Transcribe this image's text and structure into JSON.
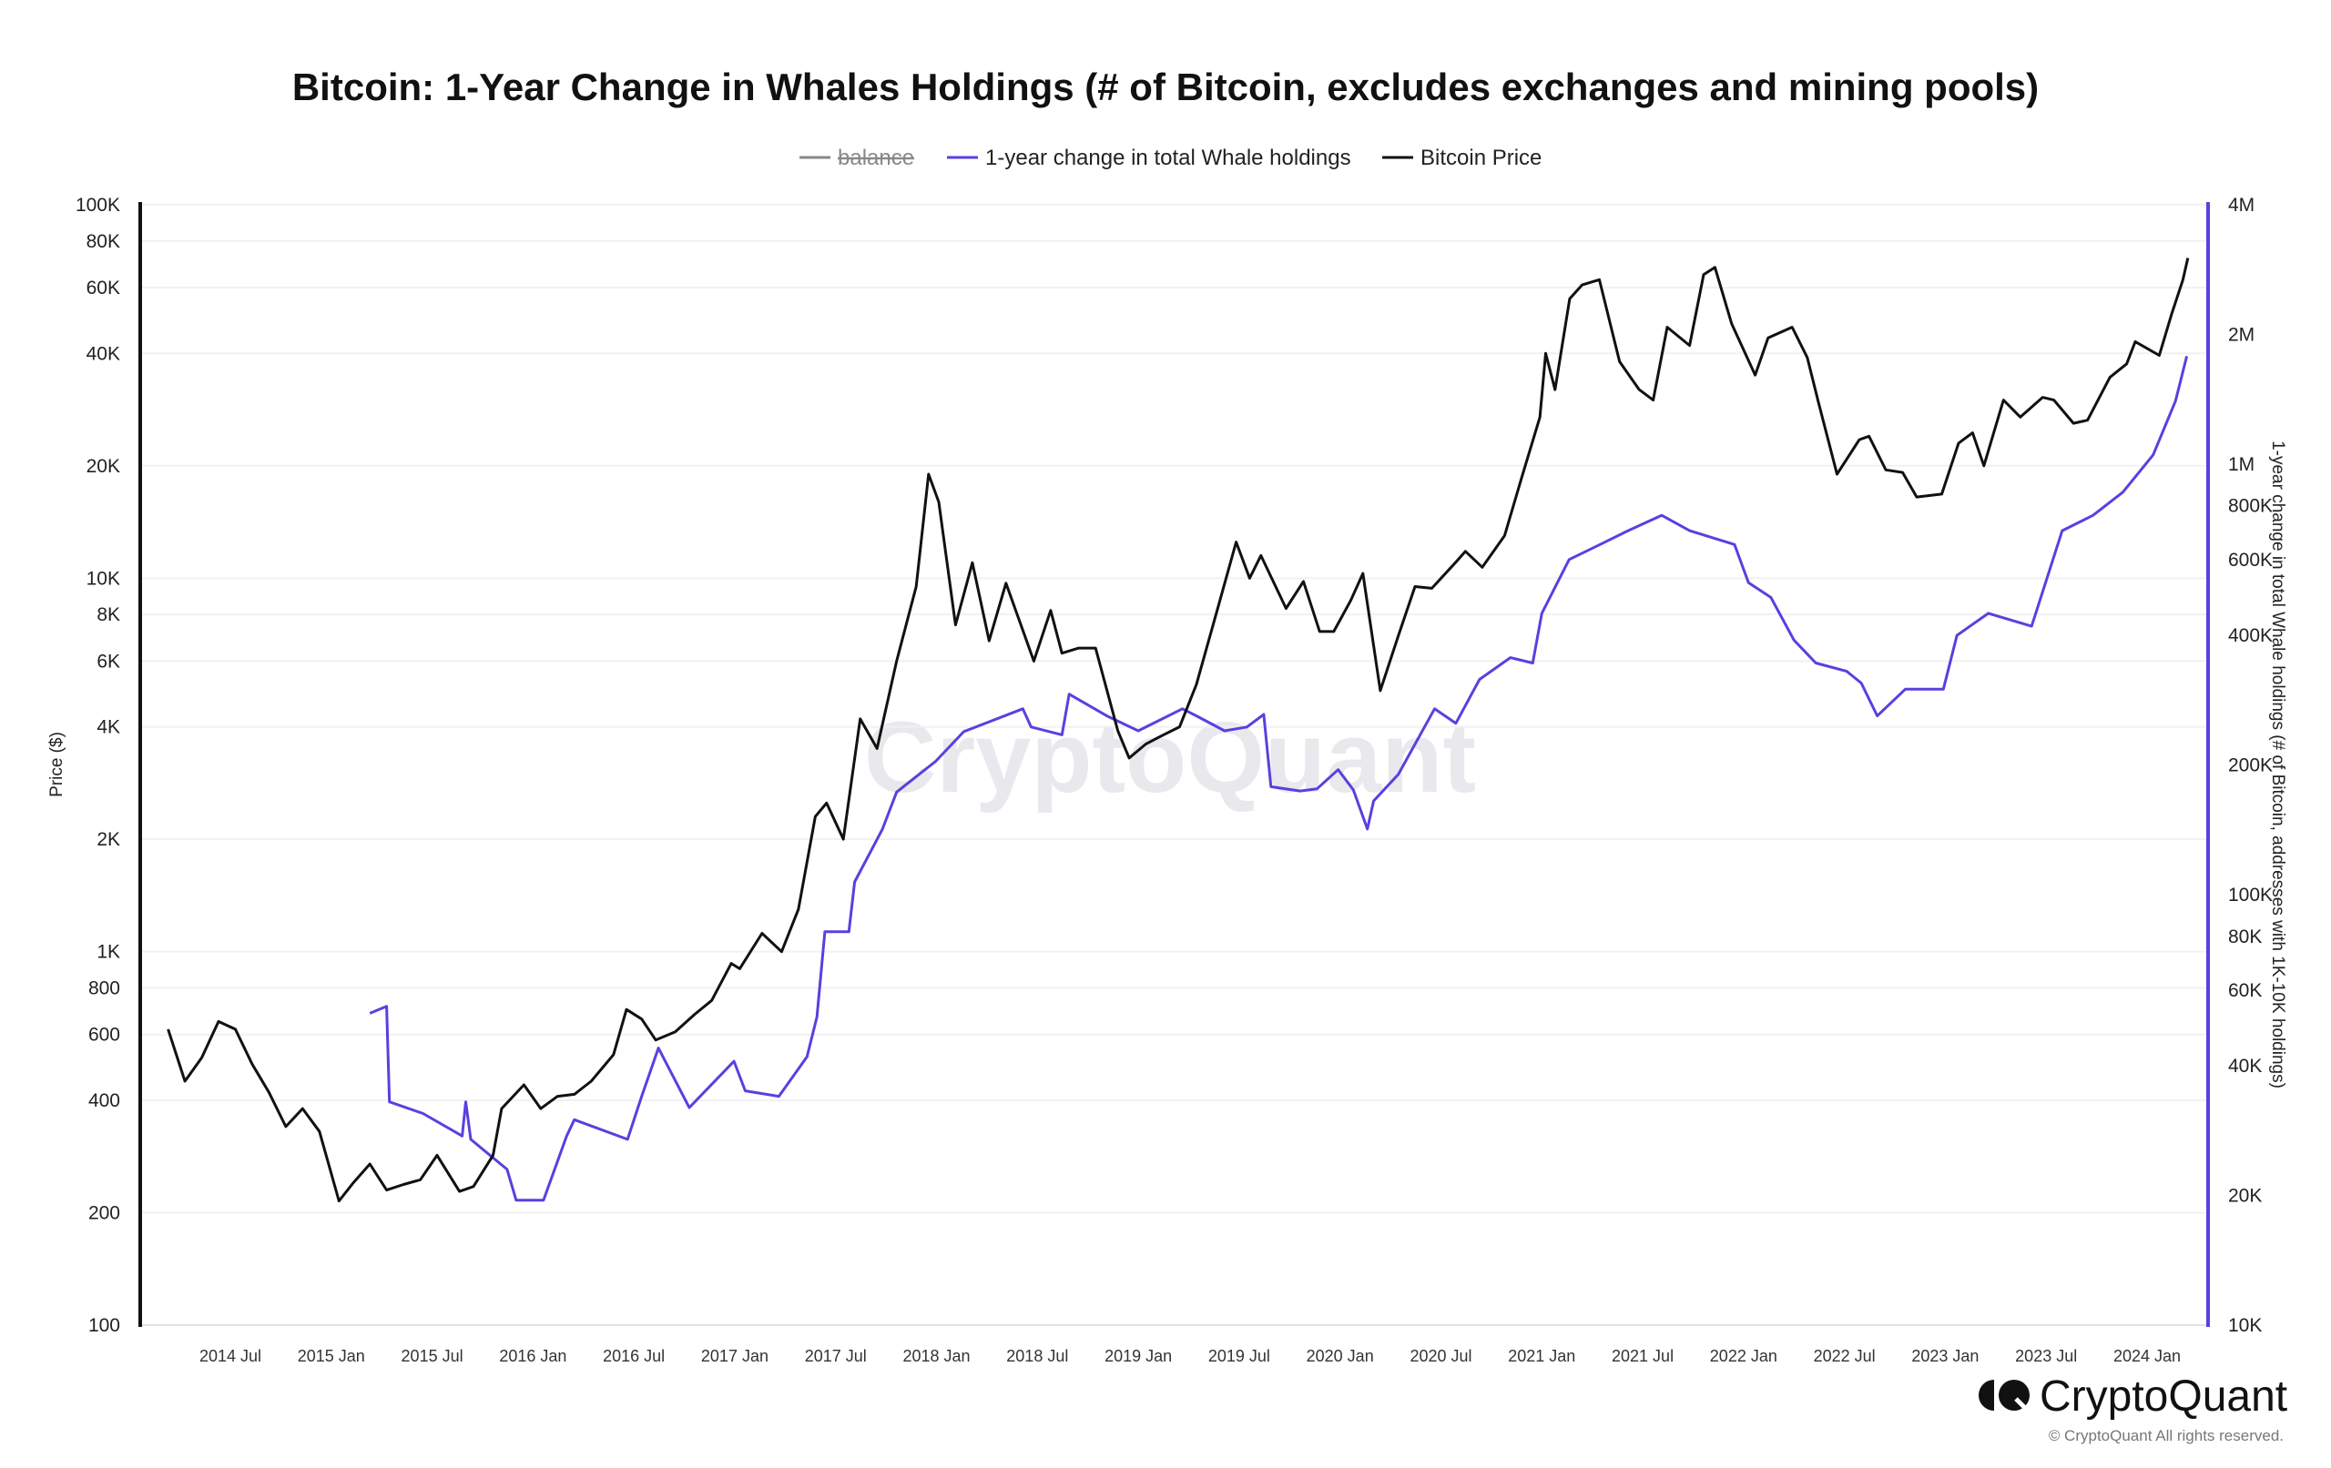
{
  "chart_data": {
    "type": "line",
    "title": "Bitcoin: 1-Year Change in Whales Holdings (# of Bitcoin, excludes exchanges and mining pools)",
    "legend": [
      {
        "name": "balance",
        "color": "#888888",
        "hidden": true
      },
      {
        "name": "1-year change in total Whale holdings",
        "color": "#5b3fe0",
        "hidden": false
      },
      {
        "name": "Bitcoin Price",
        "color": "#111111",
        "hidden": false
      }
    ],
    "legend_position": "top-center",
    "watermark": "CryptoQuant",
    "x_ticks": [
      "2014 Jul",
      "2015 Jan",
      "2015 Jul",
      "2016 Jan",
      "2016 Jul",
      "2017 Jan",
      "2017 Jul",
      "2018 Jan",
      "2018 Jul",
      "2019 Jan",
      "2019 Jul",
      "2020 Jan",
      "2020 Jul",
      "2021 Jan",
      "2021 Jul",
      "2022 Jan",
      "2022 Jul",
      "2023 Jan",
      "2023 Jul",
      "2024 Jan"
    ],
    "xlim": [
      "2014-02",
      "2024-04"
    ],
    "y_left": {
      "label": "Price ($)",
      "scale": "log",
      "range": [
        100,
        100000
      ],
      "ticks": [
        [
          100,
          "100"
        ],
        [
          200,
          "200"
        ],
        [
          400,
          "400"
        ],
        [
          600,
          "600"
        ],
        [
          800,
          "800"
        ],
        [
          1000,
          "1K"
        ],
        [
          2000,
          "2K"
        ],
        [
          4000,
          "4K"
        ],
        [
          6000,
          "6K"
        ],
        [
          8000,
          "8K"
        ],
        [
          10000,
          "10K"
        ],
        [
          20000,
          "20K"
        ],
        [
          40000,
          "40K"
        ],
        [
          60000,
          "60K"
        ],
        [
          80000,
          "80K"
        ],
        [
          100000,
          "100K"
        ]
      ]
    },
    "y_right": {
      "label": "1-year change in total Whale holdings (# of Bitcoin, addresses with 1K-10K holdings)",
      "scale": "log",
      "range": [
        10000,
        4000000
      ],
      "ticks": [
        [
          10000,
          "10K"
        ],
        [
          20000,
          "20K"
        ],
        [
          40000,
          "40K"
        ],
        [
          60000,
          "60K"
        ],
        [
          80000,
          "80K"
        ],
        [
          100000,
          "100K"
        ],
        [
          200000,
          "200K"
        ],
        [
          400000,
          "400K"
        ],
        [
          600000,
          "600K"
        ],
        [
          800000,
          "800K"
        ],
        [
          1000000,
          "1M"
        ],
        [
          2000000,
          "2M"
        ],
        [
          4000000,
          "4M"
        ]
      ]
    },
    "grid": true,
    "series": [
      {
        "name": "Bitcoin Price",
        "axis": "left",
        "color": "#111111",
        "points": [
          [
            "2014-03-10",
            620
          ],
          [
            "2014-04-10",
            450
          ],
          [
            "2014-05-10",
            520
          ],
          [
            "2014-06-10",
            650
          ],
          [
            "2014-07-10",
            620
          ],
          [
            "2014-08-10",
            500
          ],
          [
            "2014-09-10",
            420
          ],
          [
            "2014-10-10",
            340
          ],
          [
            "2014-11-10",
            380
          ],
          [
            "2014-12-10",
            330
          ],
          [
            "2015-01-15",
            215
          ],
          [
            "2015-02-10",
            240
          ],
          [
            "2015-03-10",
            270
          ],
          [
            "2015-04-10",
            230
          ],
          [
            "2015-05-10",
            238
          ],
          [
            "2015-06-10",
            245
          ],
          [
            "2015-07-10",
            285
          ],
          [
            "2015-08-20",
            228
          ],
          [
            "2015-09-15",
            235
          ],
          [
            "2015-10-20",
            285
          ],
          [
            "2015-11-05",
            380
          ],
          [
            "2015-12-15",
            440
          ],
          [
            "2016-01-15",
            380
          ],
          [
            "2016-02-15",
            410
          ],
          [
            "2016-03-15",
            415
          ],
          [
            "2016-04-15",
            450
          ],
          [
            "2016-05-25",
            530
          ],
          [
            "2016-06-18",
            700
          ],
          [
            "2016-07-15",
            660
          ],
          [
            "2016-08-10",
            580
          ],
          [
            "2016-09-15",
            610
          ],
          [
            "2016-10-20",
            680
          ],
          [
            "2016-11-20",
            740
          ],
          [
            "2016-12-25",
            930
          ],
          [
            "2017-01-10",
            900
          ],
          [
            "2017-02-20",
            1120
          ],
          [
            "2017-03-25",
            1000
          ],
          [
            "2017-04-25",
            1300
          ],
          [
            "2017-05-25",
            2300
          ],
          [
            "2017-06-15",
            2500
          ],
          [
            "2017-07-15",
            2000
          ],
          [
            "2017-08-15",
            4200
          ],
          [
            "2017-09-15",
            3500
          ],
          [
            "2017-10-20",
            6000
          ],
          [
            "2017-11-25",
            9500
          ],
          [
            "2017-12-17",
            19000
          ],
          [
            "2018-01-05",
            16000
          ],
          [
            "2018-02-05",
            7500
          ],
          [
            "2018-03-05",
            11000
          ],
          [
            "2018-04-05",
            6800
          ],
          [
            "2018-05-05",
            9700
          ],
          [
            "2018-06-25",
            6000
          ],
          [
            "2018-07-25",
            8200
          ],
          [
            "2018-08-15",
            6300
          ],
          [
            "2018-09-15",
            6500
          ],
          [
            "2018-10-15",
            6500
          ],
          [
            "2018-11-25",
            3900
          ],
          [
            "2018-12-15",
            3300
          ],
          [
            "2019-01-15",
            3600
          ],
          [
            "2019-02-15",
            3800
          ],
          [
            "2019-03-15",
            4000
          ],
          [
            "2019-04-15",
            5200
          ],
          [
            "2019-05-25",
            8500
          ],
          [
            "2019-06-26",
            12500
          ],
          [
            "2019-07-20",
            10000
          ],
          [
            "2019-08-10",
            11500
          ],
          [
            "2019-09-25",
            8300
          ],
          [
            "2019-10-26",
            9800
          ],
          [
            "2019-11-25",
            7200
          ],
          [
            "2019-12-20",
            7200
          ],
          [
            "2020-01-20",
            8700
          ],
          [
            "2020-02-12",
            10300
          ],
          [
            "2020-03-13",
            5000
          ],
          [
            "2020-04-15",
            7000
          ],
          [
            "2020-05-15",
            9500
          ],
          [
            "2020-06-15",
            9400
          ],
          [
            "2020-07-27",
            11000
          ],
          [
            "2020-08-15",
            11800
          ],
          [
            "2020-09-15",
            10700
          ],
          [
            "2020-10-25",
            13000
          ],
          [
            "2020-11-25",
            18500
          ],
          [
            "2020-12-28",
            27000
          ],
          [
            "2021-01-08",
            40000
          ],
          [
            "2021-01-25",
            32000
          ],
          [
            "2021-02-21",
            56000
          ],
          [
            "2021-03-13",
            61000
          ],
          [
            "2021-04-14",
            63000
          ],
          [
            "2021-05-20",
            38000
          ],
          [
            "2021-06-25",
            32000
          ],
          [
            "2021-07-20",
            30000
          ],
          [
            "2021-08-15",
            47000
          ],
          [
            "2021-09-25",
            42000
          ],
          [
            "2021-10-20",
            65000
          ],
          [
            "2021-11-10",
            68000
          ],
          [
            "2021-12-10",
            48000
          ],
          [
            "2022-01-22",
            35000
          ],
          [
            "2022-02-15",
            44000
          ],
          [
            "2022-03-28",
            47000
          ],
          [
            "2022-04-25",
            39000
          ],
          [
            "2022-05-15",
            29500
          ],
          [
            "2022-06-18",
            19000
          ],
          [
            "2022-07-28",
            23500
          ],
          [
            "2022-08-15",
            24000
          ],
          [
            "2022-09-15",
            19500
          ],
          [
            "2022-10-15",
            19200
          ],
          [
            "2022-11-10",
            16500
          ],
          [
            "2022-12-25",
            16800
          ],
          [
            "2023-01-25",
            23000
          ],
          [
            "2023-02-20",
            24500
          ],
          [
            "2023-03-10",
            20000
          ],
          [
            "2023-04-15",
            30000
          ],
          [
            "2023-05-15",
            27000
          ],
          [
            "2023-06-25",
            30500
          ],
          [
            "2023-07-15",
            30000
          ],
          [
            "2023-08-20",
            26000
          ],
          [
            "2023-09-15",
            26500
          ],
          [
            "2023-10-25",
            34500
          ],
          [
            "2023-11-25",
            37500
          ],
          [
            "2023-12-10",
            43000
          ],
          [
            "2024-01-23",
            39500
          ],
          [
            "2024-02-15",
            51000
          ],
          [
            "2024-03-05",
            63000
          ],
          [
            "2024-03-14",
            72000
          ]
        ]
      },
      {
        "name": "1-year change in total Whale holdings",
        "axis": "right",
        "color": "#5b3fe0",
        "points": [
          [
            "2015-03-10",
            53000
          ],
          [
            "2015-04-10",
            55000
          ],
          [
            "2015-04-15",
            33000
          ],
          [
            "2015-06-15",
            31000
          ],
          [
            "2015-08-25",
            27500
          ],
          [
            "2015-09-01",
            33000
          ],
          [
            "2015-09-10",
            27000
          ],
          [
            "2015-11-15",
            23000
          ],
          [
            "2015-12-01",
            19500
          ],
          [
            "2016-01-20",
            19500
          ],
          [
            "2016-03-01",
            27500
          ],
          [
            "2016-03-15",
            30000
          ],
          [
            "2016-06-20",
            27000
          ],
          [
            "2016-07-15",
            34000
          ],
          [
            "2016-08-15",
            44000
          ],
          [
            "2016-10-10",
            32000
          ],
          [
            "2016-12-30",
            41000
          ],
          [
            "2017-01-20",
            35000
          ],
          [
            "2017-03-20",
            34000
          ],
          [
            "2017-05-10",
            42000
          ],
          [
            "2017-05-28",
            52000
          ],
          [
            "2017-06-12",
            82000
          ],
          [
            "2017-07-25",
            82000
          ],
          [
            "2017-08-05",
            107000
          ],
          [
            "2017-09-25",
            142000
          ],
          [
            "2017-10-20",
            173000
          ],
          [
            "2017-12-30",
            204000
          ],
          [
            "2018-02-20",
            239000
          ],
          [
            "2018-06-05",
            270000
          ],
          [
            "2018-06-20",
            245000
          ],
          [
            "2018-08-15",
            235000
          ],
          [
            "2018-08-28",
            292000
          ],
          [
            "2018-11-05",
            260000
          ],
          [
            "2019-01-01",
            240000
          ],
          [
            "2019-03-20",
            270000
          ],
          [
            "2019-04-15",
            260000
          ],
          [
            "2019-06-05",
            240000
          ],
          [
            "2019-07-15",
            245000
          ],
          [
            "2019-08-15",
            262000
          ],
          [
            "2019-08-28",
            178000
          ],
          [
            "2019-10-20",
            174000
          ],
          [
            "2019-11-20",
            176000
          ],
          [
            "2019-12-28",
            195000
          ],
          [
            "2020-01-25",
            175000
          ],
          [
            "2020-02-20",
            142000
          ],
          [
            "2020-03-01",
            165000
          ],
          [
            "2020-04-15",
            190000
          ],
          [
            "2020-06-20",
            270000
          ],
          [
            "2020-07-28",
            250000
          ],
          [
            "2020-09-10",
            316000
          ],
          [
            "2020-11-05",
            355000
          ],
          [
            "2020-12-15",
            345000
          ],
          [
            "2021-01-01",
            450000
          ],
          [
            "2021-02-20",
            600000
          ],
          [
            "2021-04-15",
            650000
          ],
          [
            "2021-06-05",
            700000
          ],
          [
            "2021-08-05",
            760000
          ],
          [
            "2021-09-25",
            700000
          ],
          [
            "2021-12-15",
            650000
          ],
          [
            "2022-01-10",
            530000
          ],
          [
            "2022-02-20",
            490000
          ],
          [
            "2022-04-01",
            390000
          ],
          [
            "2022-05-10",
            345000
          ],
          [
            "2022-07-05",
            330000
          ],
          [
            "2022-08-01",
            310000
          ],
          [
            "2022-08-30",
            260000
          ],
          [
            "2022-10-20",
            300000
          ],
          [
            "2022-12-28",
            300000
          ],
          [
            "2023-01-22",
            400000
          ],
          [
            "2023-03-18",
            450000
          ],
          [
            "2023-06-05",
            420000
          ],
          [
            "2023-07-30",
            700000
          ],
          [
            "2023-09-25",
            760000
          ],
          [
            "2023-11-18",
            860000
          ],
          [
            "2024-01-12",
            1050000
          ],
          [
            "2024-02-22",
            1400000
          ],
          [
            "2024-03-12",
            1780000
          ]
        ]
      }
    ]
  },
  "footer": {
    "logo_text": "CryptoQuant",
    "copyright": "© CryptoQuant All rights reserved."
  }
}
